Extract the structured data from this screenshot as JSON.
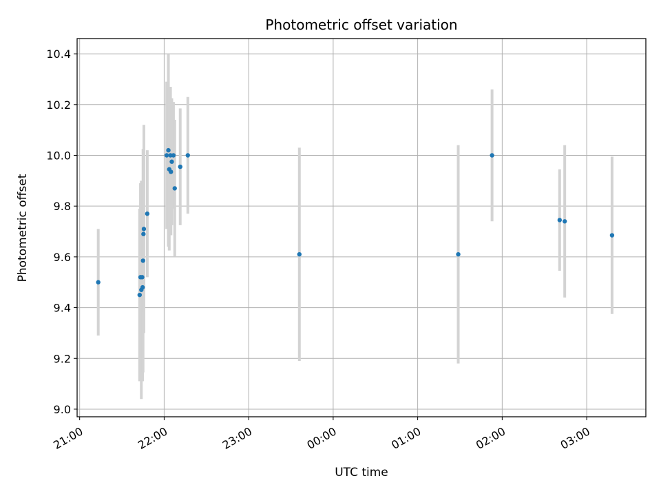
{
  "chart_data": {
    "type": "scatter",
    "title": "Photometric offset variation",
    "xlabel": "UTC time",
    "ylabel": "Photometric offset",
    "x_unit": "hours since 00:00 UTC of the first night (values past 24 belong to the next day)",
    "xlim": [
      20.97,
      27.7
    ],
    "ylim": [
      8.97,
      10.46
    ],
    "xticks": [
      {
        "value": 21,
        "label": "21:00"
      },
      {
        "value": 22,
        "label": "22:00"
      },
      {
        "value": 23,
        "label": "23:00"
      },
      {
        "value": 24,
        "label": "00:00"
      },
      {
        "value": 25,
        "label": "01:00"
      },
      {
        "value": 26,
        "label": "02:00"
      },
      {
        "value": 27,
        "label": "03:00"
      }
    ],
    "yticks": [
      {
        "value": 9.0,
        "label": "9.0"
      },
      {
        "value": 9.2,
        "label": "9.2"
      },
      {
        "value": 9.4,
        "label": "9.4"
      },
      {
        "value": 9.6,
        "label": "9.6"
      },
      {
        "value": 9.8,
        "label": "9.8"
      },
      {
        "value": 10.0,
        "label": "10.0"
      },
      {
        "value": 10.2,
        "label": "10.2"
      },
      {
        "value": 10.4,
        "label": "10.4"
      }
    ],
    "grid": true,
    "legend": "none",
    "colors": {
      "points": "#1f77b4",
      "error_bars": "#d3d3d3",
      "grid": "#b0b0b0"
    },
    "series": [
      {
        "points": [
          {
            "x": 21.22,
            "y": 9.5,
            "yerr": 0.21
          },
          {
            "x": 21.71,
            "y": 9.45,
            "yerr": 0.34
          },
          {
            "x": 21.72,
            "y": 9.52,
            "yerr": 0.37
          },
          {
            "x": 21.73,
            "y": 9.47,
            "yerr": 0.43
          },
          {
            "x": 21.74,
            "y": 9.52,
            "yerr": 0.27
          },
          {
            "x": 21.745,
            "y": 9.48,
            "yerr": 0.37
          },
          {
            "x": 21.75,
            "y": 9.585,
            "yerr": 0.44
          },
          {
            "x": 21.755,
            "y": 9.69,
            "yerr": 0.31
          },
          {
            "x": 21.76,
            "y": 9.71,
            "yerr": 0.41
          },
          {
            "x": 21.8,
            "y": 9.77,
            "yerr": 0.25
          },
          {
            "x": 22.03,
            "y": 10.0,
            "yerr": 0.29
          },
          {
            "x": 22.05,
            "y": 10.02,
            "yerr": 0.38
          },
          {
            "x": 22.06,
            "y": 9.945,
            "yerr": 0.32
          },
          {
            "x": 22.075,
            "y": 10.0,
            "yerr": 0.27
          },
          {
            "x": 22.08,
            "y": 9.935,
            "yerr": 0.25
          },
          {
            "x": 22.09,
            "y": 9.975,
            "yerr": 0.25
          },
          {
            "x": 22.11,
            "y": 10.0,
            "yerr": 0.21
          },
          {
            "x": 22.125,
            "y": 9.87,
            "yerr": 0.27
          },
          {
            "x": 22.19,
            "y": 9.955,
            "yerr": 0.23
          },
          {
            "x": 22.28,
            "y": 10.0,
            "yerr": 0.23
          },
          {
            "x": 23.6,
            "y": 9.61,
            "yerr": 0.42
          },
          {
            "x": 25.48,
            "y": 9.61,
            "yerr": 0.43
          },
          {
            "x": 25.88,
            "y": 10.0,
            "yerr": 0.26
          },
          {
            "x": 26.68,
            "y": 9.745,
            "yerr": 0.2
          },
          {
            "x": 26.74,
            "y": 9.74,
            "yerr": 0.3
          },
          {
            "x": 27.3,
            "y": 9.685,
            "yerr": 0.31
          }
        ]
      }
    ]
  }
}
